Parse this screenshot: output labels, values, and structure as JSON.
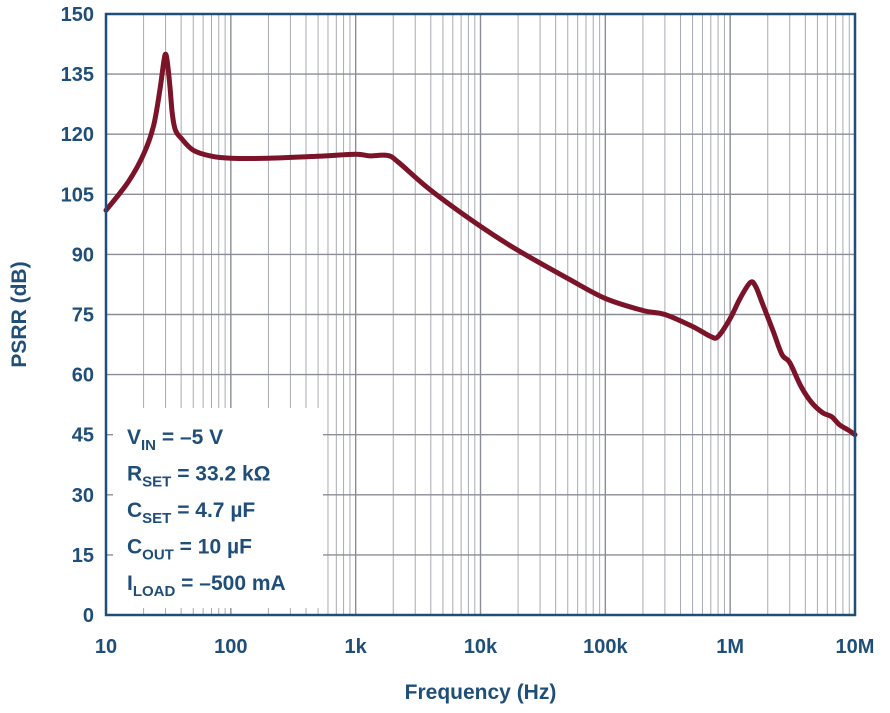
{
  "chart_data": {
    "type": "line",
    "x_scale": "log",
    "xlabel": "Frequency (Hz)",
    "ylabel": "PSRR (dB)",
    "xlim": [
      10,
      10000000
    ],
    "ylim": [
      0,
      150
    ],
    "grid": true,
    "x_ticks": [
      {
        "value": 10,
        "label": "10"
      },
      {
        "value": 100,
        "label": "100"
      },
      {
        "value": 1000,
        "label": "1k"
      },
      {
        "value": 10000,
        "label": "10k"
      },
      {
        "value": 100000,
        "label": "100k"
      },
      {
        "value": 1000000,
        "label": "1M"
      },
      {
        "value": 10000000,
        "label": "10M"
      }
    ],
    "y_ticks": [
      {
        "value": 0,
        "label": "0"
      },
      {
        "value": 15,
        "label": "15"
      },
      {
        "value": 30,
        "label": "30"
      },
      {
        "value": 45,
        "label": "45"
      },
      {
        "value": 60,
        "label": "60"
      },
      {
        "value": 75,
        "label": "75"
      },
      {
        "value": 90,
        "label": "90"
      },
      {
        "value": 105,
        "label": "105"
      },
      {
        "value": 120,
        "label": "120"
      },
      {
        "value": 135,
        "label": "135"
      },
      {
        "value": 150,
        "label": "150"
      }
    ],
    "series": [
      {
        "color": "#7b1428",
        "points": [
          [
            10,
            101
          ],
          [
            15,
            108
          ],
          [
            20,
            115
          ],
          [
            24,
            122
          ],
          [
            27,
            131
          ],
          [
            29,
            138
          ],
          [
            30,
            140
          ],
          [
            31,
            138
          ],
          [
            32.5,
            132
          ],
          [
            34,
            125
          ],
          [
            36,
            121
          ],
          [
            40,
            119
          ],
          [
            50,
            116
          ],
          [
            70,
            114.5
          ],
          [
            100,
            114
          ],
          [
            200,
            114
          ],
          [
            500,
            114.5
          ],
          [
            1000,
            115
          ],
          [
            1300,
            114.6
          ],
          [
            1800,
            114.7
          ],
          [
            2200,
            113
          ],
          [
            4000,
            106
          ],
          [
            10000,
            97
          ],
          [
            20000,
            91
          ],
          [
            50000,
            84
          ],
          [
            100000,
            79
          ],
          [
            200000,
            76
          ],
          [
            300000,
            75
          ],
          [
            500000,
            72
          ],
          [
            700000,
            69.5
          ],
          [
            800000,
            69.5
          ],
          [
            1000000,
            74
          ],
          [
            1200000,
            79
          ],
          [
            1450000,
            83
          ],
          [
            1600000,
            82
          ],
          [
            1800000,
            78
          ],
          [
            2200000,
            71
          ],
          [
            2600000,
            65
          ],
          [
            3000000,
            63
          ],
          [
            3700000,
            57
          ],
          [
            4500000,
            53
          ],
          [
            5500000,
            50.5
          ],
          [
            6500000,
            49.5
          ],
          [
            7500000,
            47.5
          ],
          [
            9000000,
            46
          ],
          [
            10000000,
            45
          ]
        ]
      }
    ],
    "legend": "none",
    "annotation": {
      "position": "bottom-left",
      "lines": [
        {
          "main": "V",
          "sub": "IN",
          "rest": " = –5 V"
        },
        {
          "main": "R",
          "sub": "SET",
          "rest": " = 33.2 kΩ"
        },
        {
          "main": "C",
          "sub": "SET",
          "rest": " = 4.7 µF"
        },
        {
          "main": "C",
          "sub": "OUT",
          "rest": " = 10 µF"
        },
        {
          "main": "I",
          "sub": "LOAD",
          "rest": " = –500 mA"
        }
      ]
    }
  }
}
